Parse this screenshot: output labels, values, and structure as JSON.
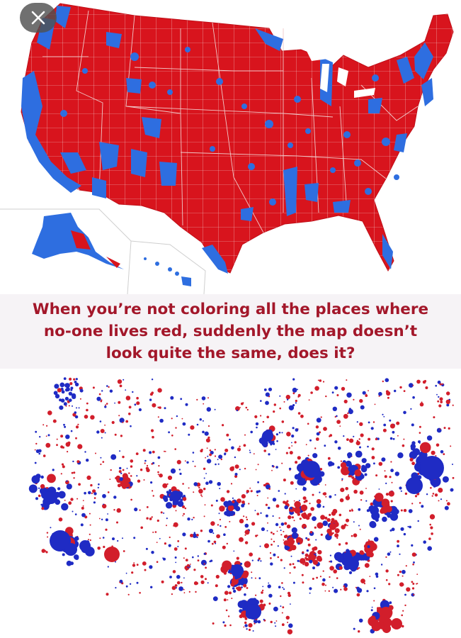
{
  "caption": {
    "text": "When you’re not coloring all the places where\nno-one lives red, suddenly the map doesn’t\nlook quite the same, does it?"
  },
  "close_button": {
    "icon": "close-icon"
  },
  "colors": {
    "republican_red": "#d8141d",
    "democrat_blue": "#2e6ee0",
    "bubble_red": "#d21e2b",
    "bubble_blue": "#1f2bc4",
    "caption_text": "#a3172a",
    "caption_bg": "#f6f3f6"
  }
}
